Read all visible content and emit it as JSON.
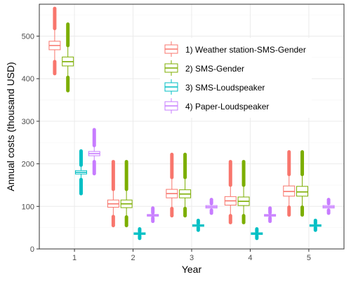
{
  "chart_data": {
    "type": "boxplot",
    "xlabel": "Year",
    "ylabel": "Annual costs (thousand USD)",
    "categories": [
      "1",
      "2",
      "3",
      "4",
      "5"
    ],
    "ylim": [
      0,
      575
    ],
    "yticks": [
      0,
      100,
      200,
      300,
      400,
      500
    ],
    "grid": true,
    "legend_position": "top-right, inside plot",
    "series": [
      {
        "name": "1) Weather station-SMS-Gender",
        "color": "#F8766D",
        "boxes": [
          {
            "x": "1",
            "q1": 468,
            "median": 478,
            "q3": 488,
            "whisker_low": 440,
            "whisker_high": 518,
            "outlier_low": 412,
            "outlier_high": 565
          },
          {
            "x": "2",
            "q1": 98,
            "median": 106,
            "q3": 115,
            "whisker_low": 76,
            "whisker_high": 140,
            "outlier_low": 55,
            "outlier_high": 205
          },
          {
            "x": "3",
            "q1": 120,
            "median": 130,
            "q3": 140,
            "whisker_low": 95,
            "whisker_high": 168,
            "outlier_low": 78,
            "outlier_high": 222
          },
          {
            "x": "4",
            "q1": 103,
            "median": 113,
            "q3": 123,
            "whisker_low": 78,
            "whisker_high": 150,
            "outlier_low": 62,
            "outlier_high": 205
          },
          {
            "x": "5",
            "q1": 124,
            "median": 135,
            "q3": 148,
            "whisker_low": 98,
            "whisker_high": 175,
            "outlier_low": 80,
            "outlier_high": 228
          }
        ]
      },
      {
        "name": "2) SMS-Gender",
        "color": "#7CAE00",
        "boxes": [
          {
            "x": "1",
            "q1": 430,
            "median": 440,
            "q3": 451,
            "whisker_low": 403,
            "whisker_high": 478,
            "outlier_low": 372,
            "outlier_high": 528
          },
          {
            "x": "2",
            "q1": 97,
            "median": 106,
            "q3": 115,
            "whisker_low": 75,
            "whisker_high": 140,
            "outlier_low": 55,
            "outlier_high": 205
          },
          {
            "x": "3",
            "q1": 120,
            "median": 129,
            "q3": 139,
            "whisker_low": 95,
            "whisker_high": 168,
            "outlier_low": 78,
            "outlier_high": 222
          },
          {
            "x": "4",
            "q1": 102,
            "median": 112,
            "q3": 122,
            "whisker_low": 78,
            "whisker_high": 150,
            "outlier_low": 62,
            "outlier_high": 205
          },
          {
            "x": "5",
            "q1": 124,
            "median": 134,
            "q3": 147,
            "whisker_low": 98,
            "whisker_high": 175,
            "outlier_low": 80,
            "outlier_high": 228
          }
        ]
      },
      {
        "name": "3) SMS-Loudspeaker",
        "color": "#00BFC4",
        "boxes": [
          {
            "x": "1",
            "q1": 176,
            "median": 180,
            "q3": 184,
            "whisker_low": 163,
            "whisker_high": 197,
            "outlier_low": 130,
            "outlier_high": 230
          },
          {
            "x": "2",
            "q1": 34,
            "median": 36,
            "q3": 38,
            "whisker_low": 31,
            "whisker_high": 41,
            "outlier_low": 25,
            "outlier_high": 47
          },
          {
            "x": "3",
            "q1": 53,
            "median": 55,
            "q3": 57,
            "whisker_low": 50,
            "whisker_high": 60,
            "outlier_low": 44,
            "outlier_high": 67
          },
          {
            "x": "4",
            "q1": 34,
            "median": 36,
            "q3": 38,
            "whisker_low": 31,
            "whisker_high": 41,
            "outlier_low": 25,
            "outlier_high": 47
          },
          {
            "x": "5",
            "q1": 53,
            "median": 55,
            "q3": 57,
            "whisker_low": 50,
            "whisker_high": 60,
            "outlier_low": 44,
            "outlier_high": 67
          }
        ]
      },
      {
        "name": "4) Paper-Loudspeaker",
        "color": "#C77CFF",
        "boxes": [
          {
            "x": "1",
            "q1": 219,
            "median": 224,
            "q3": 229,
            "whisker_low": 205,
            "whisker_high": 243,
            "outlier_low": 177,
            "outlier_high": 280
          },
          {
            "x": "2",
            "q1": 77,
            "median": 79,
            "q3": 81,
            "whisker_low": 73,
            "whisker_high": 85,
            "outlier_low": 65,
            "outlier_high": 96
          },
          {
            "x": "3",
            "q1": 96,
            "median": 99,
            "q3": 102,
            "whisker_low": 91,
            "whisker_high": 107,
            "outlier_low": 84,
            "outlier_high": 116
          },
          {
            "x": "4",
            "q1": 77,
            "median": 79,
            "q3": 81,
            "whisker_low": 73,
            "whisker_high": 85,
            "outlier_low": 65,
            "outlier_high": 96
          },
          {
            "x": "5",
            "q1": 96,
            "median": 99,
            "q3": 102,
            "whisker_low": 91,
            "whisker_high": 107,
            "outlier_low": 84,
            "outlier_high": 116
          }
        ]
      }
    ]
  }
}
